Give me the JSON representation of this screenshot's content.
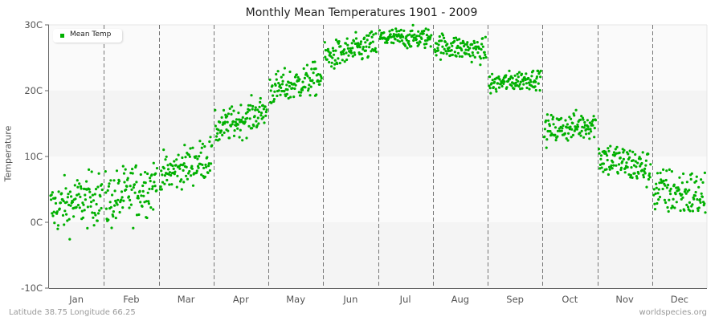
{
  "title": "Monthly Mean Temperatures 1901 - 2009",
  "y_axis_label": "Temperature",
  "footer": {
    "location": "Latitude 38.75 Longitude 66.25",
    "source": "worldspecies.org"
  },
  "legend": {
    "label": "Mean Temp",
    "color": "#00b000"
  },
  "colors": {
    "point": "#00b000",
    "band_light": "#fafafa",
    "band_dark": "#f4f4f4",
    "grid_dash": "#777777",
    "axis": "#666666"
  },
  "chart_data": {
    "type": "scatter",
    "title": "Monthly Mean Temperatures 1901 - 2009",
    "xlabel": "",
    "ylabel": "Temperature",
    "ylim": [
      -10,
      30
    ],
    "y_ticks": [
      "-10C",
      "0C",
      "10C",
      "20C",
      "30C"
    ],
    "y_tick_values": [
      -10,
      0,
      10,
      20,
      30
    ],
    "categories": [
      "Jan",
      "Feb",
      "Mar",
      "Apr",
      "May",
      "Jun",
      "Jul",
      "Aug",
      "Sep",
      "Oct",
      "Nov",
      "Dec"
    ],
    "legend": [
      "Mean Temp"
    ],
    "legend_position": "top-left",
    "grid": "vertical dashed month separators, horizontal alternating bands",
    "points_per_month": 109,
    "series": [
      {
        "name": "Mean Temp",
        "monthly_mean": [
          3,
          4,
          9,
          16,
          21,
          26,
          28,
          26,
          21,
          14,
          9,
          4
        ],
        "monthly_min": [
          -5,
          -5,
          5,
          12,
          17,
          22,
          25,
          23,
          18,
          11,
          4,
          -4
        ],
        "monthly_max": [
          8,
          9,
          15,
          20,
          25,
          29,
          30,
          29,
          23,
          18,
          13,
          8
        ],
        "monthly_trend_start": [
          2,
          3,
          7,
          14,
          20,
          25,
          28,
          27,
          21,
          14,
          10,
          5
        ],
        "monthly_trend_end": [
          4,
          6,
          10,
          17,
          22,
          27,
          28,
          26,
          22,
          15,
          8,
          4
        ]
      }
    ]
  }
}
